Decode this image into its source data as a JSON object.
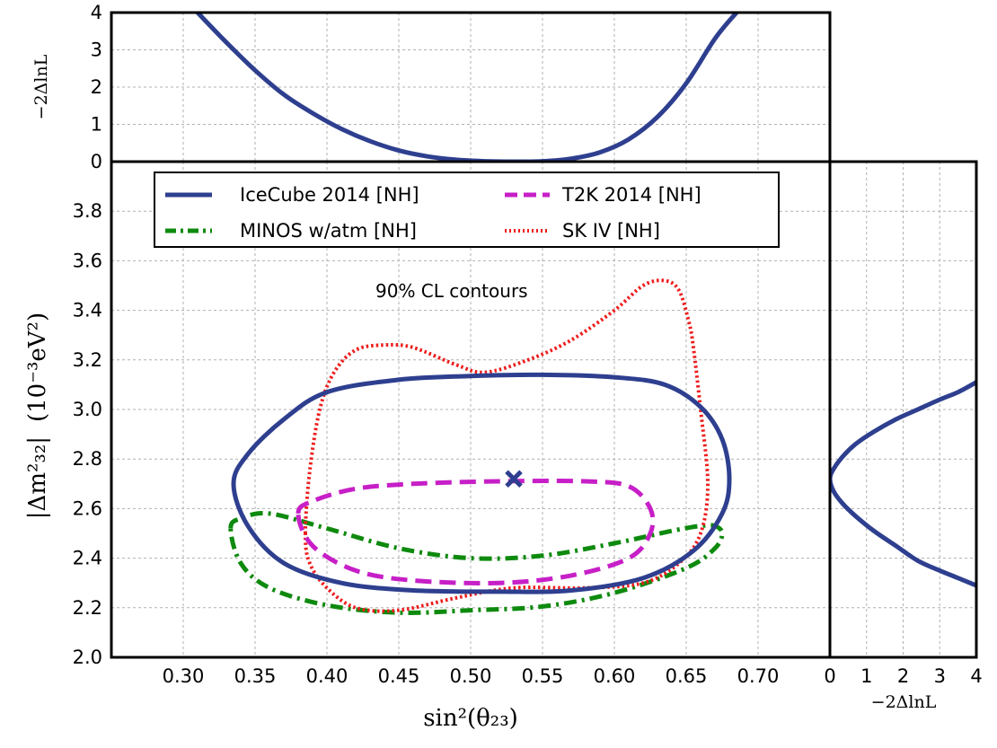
{
  "chart_data": {
    "type": "line",
    "title": "",
    "annotation": "90% CL contours",
    "main": {
      "xlabel": "sin²(θ₂₃)",
      "ylabel_symbol": "|Δm²₃₂|",
      "ylabel_unit": "(10⁻³eV²)",
      "xlim": [
        0.25,
        0.75
      ],
      "ylim": [
        2.0,
        4.0
      ],
      "xticks": [
        "0.30",
        "0.35",
        "0.40",
        "0.45",
        "0.50",
        "0.55",
        "0.60",
        "0.65",
        "0.70"
      ],
      "yticks": [
        "2.0",
        "2.2",
        "2.4",
        "2.6",
        "2.8",
        "3.0",
        "3.2",
        "3.4",
        "3.6",
        "3.8"
      ],
      "grid": true,
      "best_fit": {
        "name": "IceCube best fit",
        "x": 0.53,
        "y": 2.72,
        "marker": "x"
      },
      "legend_position": "top",
      "series": [
        {
          "name": "IceCube 2014 [NH]",
          "color": "#2e3f8f",
          "style": "solid",
          "x": [
            0.335,
            0.345,
            0.37,
            0.4,
            0.45,
            0.5,
            0.55,
            0.6,
            0.635,
            0.66,
            0.675,
            0.68,
            0.675,
            0.655,
            0.62,
            0.57,
            0.52,
            0.46,
            0.41,
            0.37,
            0.345,
            0.335
          ],
          "y": [
            2.7,
            2.82,
            2.96,
            3.07,
            3.12,
            3.135,
            3.14,
            3.13,
            3.1,
            3.01,
            2.88,
            2.72,
            2.58,
            2.43,
            2.32,
            2.27,
            2.265,
            2.27,
            2.3,
            2.38,
            2.53,
            2.7
          ]
        },
        {
          "name": "T2K 2014 [NH]",
          "color": "#c71fc7",
          "style": "dashed",
          "x": [
            0.38,
            0.39,
            0.42,
            0.46,
            0.52,
            0.58,
            0.61,
            0.625,
            0.625,
            0.61,
            0.57,
            0.52,
            0.46,
            0.42,
            0.39,
            0.38
          ],
          "y": [
            2.58,
            2.63,
            2.68,
            2.7,
            2.71,
            2.71,
            2.69,
            2.6,
            2.5,
            2.4,
            2.33,
            2.3,
            2.31,
            2.35,
            2.45,
            2.58
          ]
        },
        {
          "name": "MINOS w/atm [NH]",
          "color": "#0e8a0e",
          "style": "dashdot",
          "x": [
            0.333,
            0.34,
            0.36,
            0.4,
            0.45,
            0.5,
            0.55,
            0.6,
            0.64,
            0.66,
            0.67,
            0.675,
            0.67,
            0.65,
            0.6,
            0.55,
            0.5,
            0.45,
            0.4,
            0.36,
            0.34,
            0.333
          ],
          "y": [
            2.52,
            2.56,
            2.58,
            2.52,
            2.44,
            2.4,
            2.41,
            2.46,
            2.51,
            2.53,
            2.53,
            2.5,
            2.44,
            2.36,
            2.26,
            2.205,
            2.19,
            2.18,
            2.21,
            2.28,
            2.38,
            2.52
          ]
        },
        {
          "name": "SK IV [NH]",
          "color": "#ee1c1c",
          "style": "dotted",
          "x": [
            0.385,
            0.388,
            0.395,
            0.405,
            0.42,
            0.44,
            0.46,
            0.49,
            0.51,
            0.54,
            0.57,
            0.6,
            0.62,
            0.635,
            0.645,
            0.652,
            0.655,
            0.66,
            0.665,
            0.66,
            0.645,
            0.62,
            0.58,
            0.53,
            0.49,
            0.45,
            0.42,
            0.4,
            0.388,
            0.385
          ],
          "y": [
            2.5,
            2.75,
            3.0,
            3.15,
            3.24,
            3.26,
            3.25,
            3.18,
            3.15,
            3.2,
            3.28,
            3.4,
            3.5,
            3.52,
            3.48,
            3.35,
            3.25,
            3.0,
            2.7,
            2.5,
            2.38,
            2.3,
            2.28,
            2.28,
            2.24,
            2.19,
            2.2,
            2.28,
            2.38,
            2.5
          ]
        }
      ]
    },
    "top_panel": {
      "ylabel": "−2ΔlnL",
      "ylim": [
        0,
        4
      ],
      "yticks": [
        "0",
        "1",
        "2",
        "3",
        "4"
      ],
      "series": {
        "name": "IceCube 2014 [NH]",
        "color": "#2e3f8f",
        "x": [
          0.31,
          0.33,
          0.35,
          0.37,
          0.39,
          0.41,
          0.43,
          0.45,
          0.47,
          0.49,
          0.51,
          0.53,
          0.55,
          0.57,
          0.59,
          0.61,
          0.63,
          0.65,
          0.67,
          0.685
        ],
        "y": [
          4.0,
          3.2,
          2.45,
          1.8,
          1.3,
          0.88,
          0.55,
          0.3,
          0.14,
          0.05,
          0.01,
          0.0,
          0.01,
          0.08,
          0.25,
          0.6,
          1.2,
          2.1,
          3.3,
          4.0
        ]
      }
    },
    "right_panel": {
      "xlabel": "−2ΔlnL",
      "xlim": [
        0,
        4
      ],
      "xticks": [
        "0",
        "1",
        "2",
        "3",
        "4"
      ],
      "series": {
        "name": "IceCube 2014 [NH]",
        "color": "#2e3f8f",
        "x": [
          4.0,
          3.5,
          3.0,
          2.4,
          1.8,
          1.2,
          0.7,
          0.35,
          0.1,
          0.0,
          0.1,
          0.35,
          0.7,
          1.2,
          1.8,
          2.4,
          3.0,
          3.5,
          4.0
        ],
        "y": [
          3.11,
          3.07,
          3.04,
          3.0,
          2.96,
          2.91,
          2.86,
          2.81,
          2.76,
          2.72,
          2.67,
          2.62,
          2.57,
          2.51,
          2.45,
          2.39,
          2.35,
          2.32,
          2.29
        ]
      }
    }
  }
}
